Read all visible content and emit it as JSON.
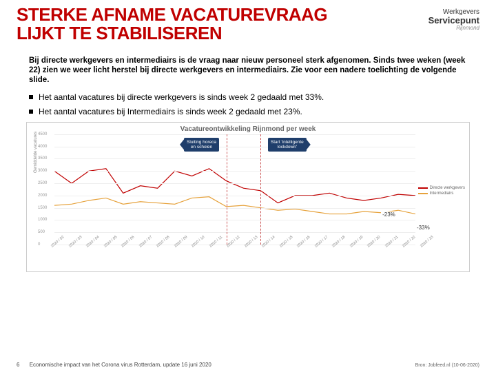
{
  "title_line1": "STERKE AFNAME VACATUREVRAAG",
  "title_line2": "LIJKT TE STABILISEREN",
  "logo": {
    "l1": "Werkgevers",
    "l2": "Servicepunt",
    "l3": "Rijnmond"
  },
  "intro": "Bij directe werkgevers en intermediairs is de vraag naar nieuw personeel sterk afgenomen. Sinds twee weken (week 22) zien we weer licht herstel bij directe werkgevers en intermediairs. Zie voor een nadere toelichting de volgende slide.",
  "bullet1": "Het aantal vacatures bij directe werkgevers is sinds week 2 gedaald met 33%.",
  "bullet2": "Het aantal vacatures bij Intermediairs is sinds week 2 gedaald met 23%.",
  "chart": {
    "title": "Vacatureontwikkeling Rijnmond per week",
    "ylabel": "Gemiddelde vacatures",
    "ymin": 0,
    "ymax": 4500,
    "ystep": 500,
    "categories": [
      "2020 / 02",
      "2020 / 03",
      "2020 / 04",
      "2020 / 05",
      "2020 / 06",
      "2020 / 07",
      "2020 / 08",
      "2020 / 09",
      "2020 / 10",
      "2020 / 11",
      "2020 / 12",
      "2020 / 13",
      "2020 / 14",
      "2020 / 15",
      "2020 / 16",
      "2020 / 17",
      "2020 / 18",
      "2020 / 19",
      "2020 / 20",
      "2020 / 21",
      "2020 / 22",
      "2020 / 23"
    ],
    "series": [
      {
        "name": "Directe werkgevers",
        "color": "#c00000",
        "values": [
          3000,
          2500,
          3000,
          3100,
          2100,
          2400,
          2300,
          3000,
          2800,
          3100,
          2600,
          2300,
          2200,
          1700,
          2000,
          2000,
          2100,
          1900,
          1800,
          1900,
          2050,
          2000
        ]
      },
      {
        "name": "Intermediairs",
        "color": "#e6a23c",
        "values": [
          1600,
          1650,
          1800,
          1900,
          1650,
          1750,
          1700,
          1650,
          1900,
          1950,
          1550,
          1600,
          1500,
          1400,
          1450,
          1350,
          1250,
          1250,
          1350,
          1300,
          1400,
          1250
        ]
      }
    ],
    "callouts": [
      {
        "text_l1": "Sluiting horeca",
        "text_l2": "en scholen",
        "x_index": 10,
        "side": "left"
      },
      {
        "text_l1": "Start 'intelligente",
        "text_l2": "lockdown'",
        "x_index": 12,
        "side": "right"
      }
    ],
    "vdash_indices": [
      10,
      12
    ],
    "pct_labels": [
      {
        "text": "-23%",
        "x_index": 19,
        "y": 1350
      },
      {
        "text": "-33%",
        "x_index": 21,
        "y": 800
      }
    ],
    "legend_label1": "Directe werkgevers",
    "legend_label2": "Intermediairs"
  },
  "footer": {
    "pagenum": "6",
    "caption": "Economische impact van het Corona virus Rotterdam, update 16 juni 2020",
    "source": "Bron: Jobfeed.nl (10-06-2020)"
  }
}
